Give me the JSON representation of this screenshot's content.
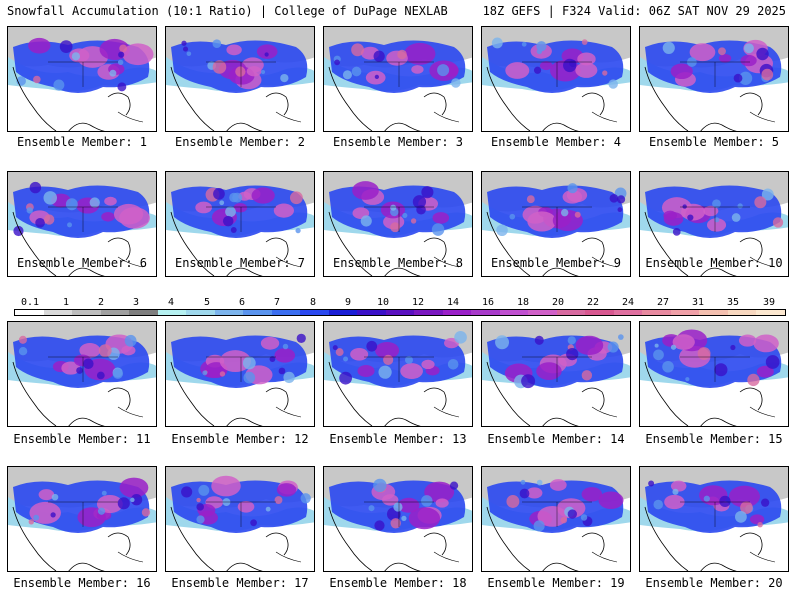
{
  "header": {
    "left": "Snowfall Accumulation (10:1 Ratio) | College of DuPage NEXLAB",
    "right": "18Z GEFS | F324 Valid: 06Z SAT NOV 29 2025"
  },
  "members": [
    "Ensemble Member: 1",
    "Ensemble Member: 2",
    "Ensemble Member: 3",
    "Ensemble Member: 4",
    "Ensemble Member: 5",
    "Ensemble Member: 6",
    "Ensemble Member: 7",
    "Ensemble Member: 8",
    "Ensemble Member: 9",
    "Ensemble Member: 10",
    "Ensemble Member: 11",
    "Ensemble Member: 12",
    "Ensemble Member: 13",
    "Ensemble Member: 14",
    "Ensemble Member: 15",
    "Ensemble Member: 16",
    "Ensemble Member: 17",
    "Ensemble Member: 18",
    "Ensemble Member: 19",
    "Ensemble Member: 20"
  ],
  "colorbar": {
    "ticks": [
      "0.1",
      "1",
      "2",
      "3",
      "4",
      "5",
      "6",
      "7",
      "8",
      "9",
      "10",
      "12",
      "14",
      "16",
      "18",
      "20",
      "22",
      "24",
      "27",
      "31",
      "35",
      "39"
    ],
    "colors": [
      "#ffffff",
      "#d9d9d9",
      "#bdbdbd",
      "#a0a0a0",
      "#7f7f7f",
      "#b5f0f0",
      "#9fd8ec",
      "#7cb4ec",
      "#5a94ee",
      "#3b6ef0",
      "#2a48f0",
      "#1a1ed6",
      "#3a10c8",
      "#5a10c0",
      "#7a18c0",
      "#9a20c8",
      "#a83aca",
      "#c050d0",
      "#d060c8",
      "#d86aa0",
      "#d85890",
      "#e070a0",
      "#e88aa0",
      "#f0a0a8",
      "#f4c0b0",
      "#f8d8c0",
      "#fce8d0"
    ]
  }
}
